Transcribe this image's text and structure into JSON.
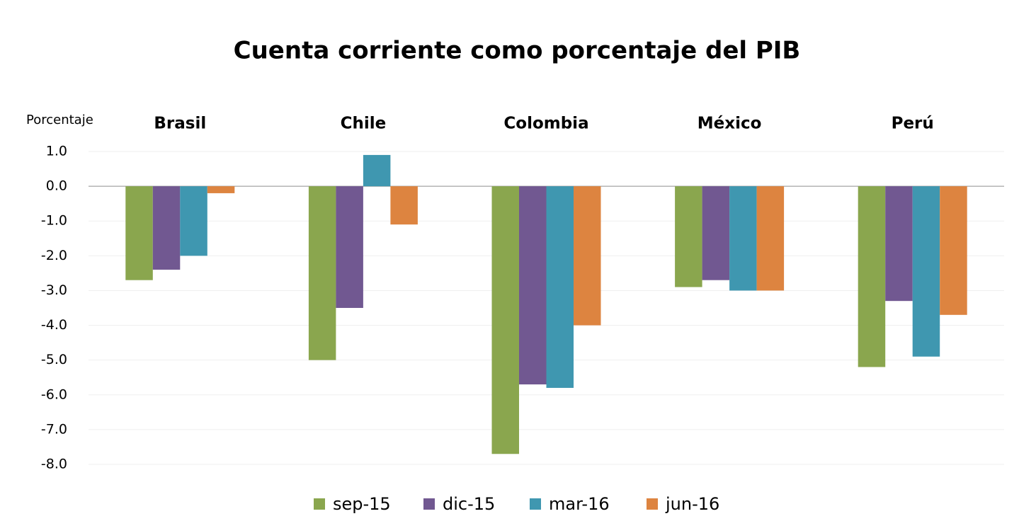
{
  "chart_data": {
    "type": "bar",
    "title": "Cuenta corriente como porcentaje del PIB",
    "y_label": "Porcentaje",
    "categories": [
      "Brasil",
      "Chile",
      "Colombia",
      "México",
      "Perú"
    ],
    "series": [
      {
        "name": "sep-15",
        "color": "#8aa64e",
        "values": [
          -2.7,
          -5.0,
          -7.7,
          -2.9,
          -5.2
        ]
      },
      {
        "name": "dic-15",
        "color": "#715891",
        "values": [
          -2.4,
          -3.5,
          -5.7,
          -2.7,
          -3.3
        ]
      },
      {
        "name": "mar-16",
        "color": "#3f97b0",
        "values": [
          -2.0,
          0.9,
          -5.8,
          -3.0,
          -4.9
        ]
      },
      {
        "name": "jun-16",
        "color": "#dd8440",
        "values": [
          -0.2,
          -1.1,
          -4.0,
          -3.0,
          -3.7
        ]
      }
    ],
    "ylim": [
      -8,
      1
    ],
    "yticks": [
      {
        "value": 1,
        "label": "1.0"
      },
      {
        "value": 0,
        "label": "0.0"
      },
      {
        "value": -1,
        "label": "-1.0"
      },
      {
        "value": -2,
        "label": "-2.0"
      },
      {
        "value": -3,
        "label": "-3.0"
      },
      {
        "value": -4,
        "label": "-4.0"
      },
      {
        "value": -5,
        "label": "-5.0"
      },
      {
        "value": -6,
        "label": "-6.0"
      },
      {
        "value": -7,
        "label": "-7.0"
      },
      {
        "value": -8,
        "label": "-8.0"
      }
    ],
    "grid": true,
    "legend": "bottom"
  }
}
